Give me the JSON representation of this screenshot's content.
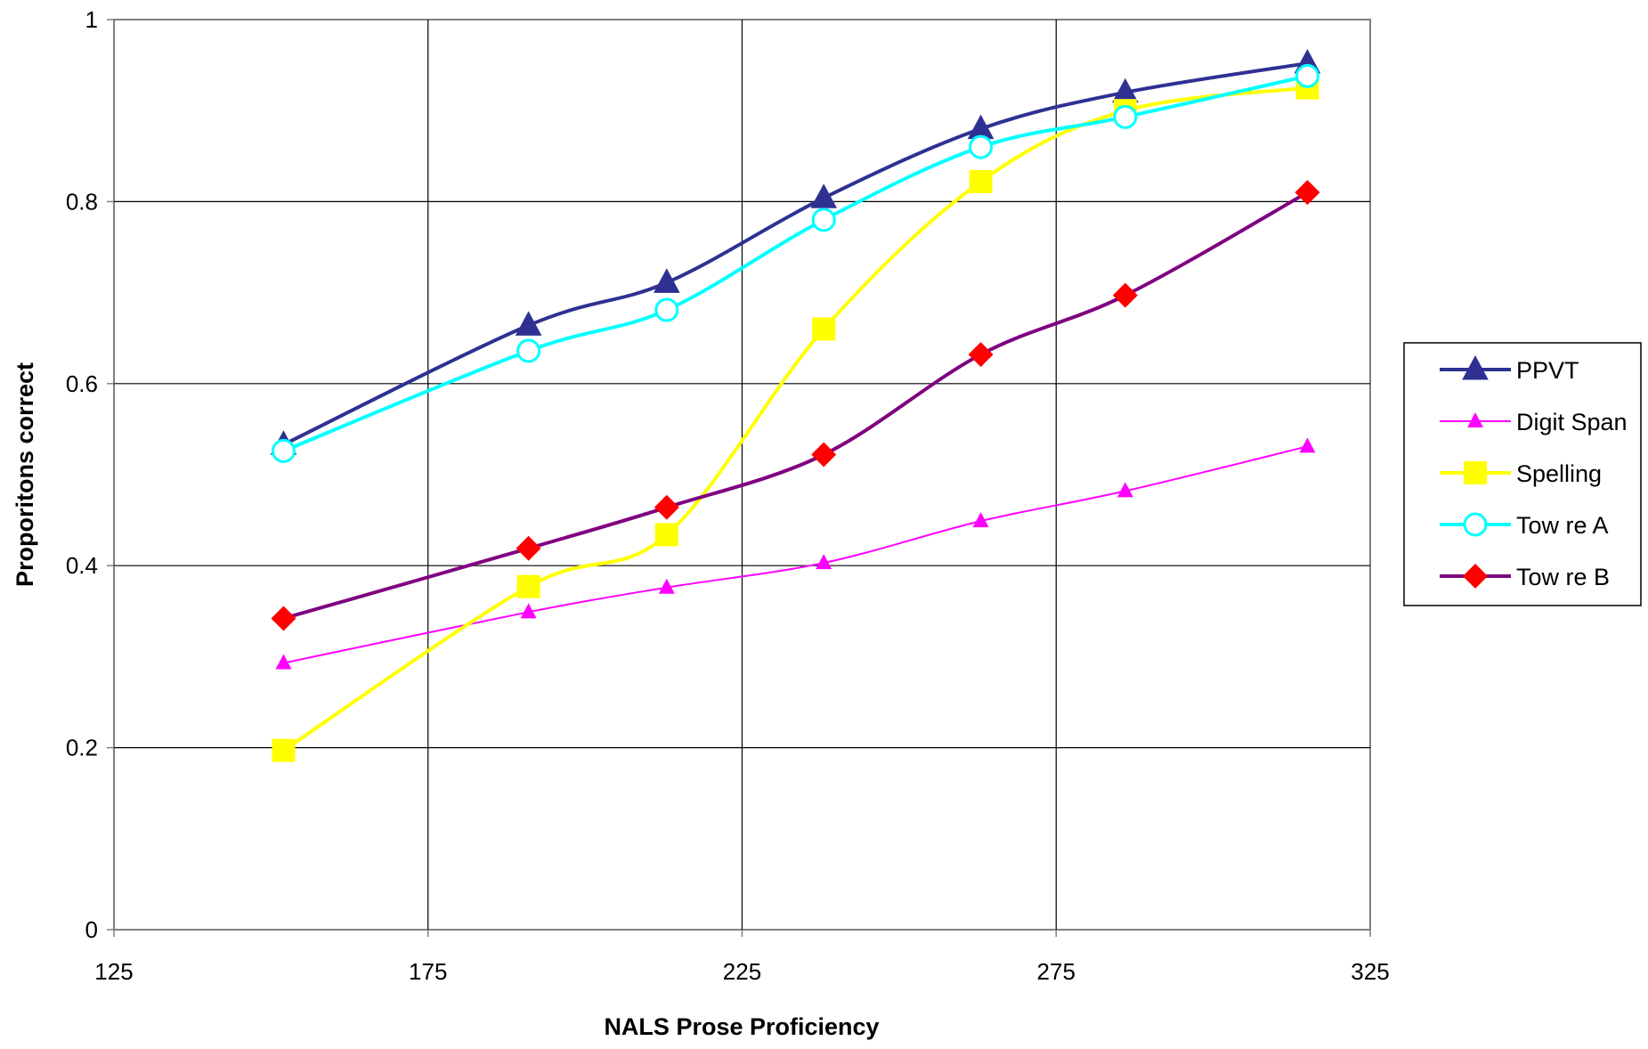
{
  "chart_data": {
    "type": "line",
    "title": "",
    "xlabel": "NALS Prose Proficiency",
    "ylabel": "Proporitons correct",
    "xlim": [
      125,
      325
    ],
    "ylim": [
      0,
      1
    ],
    "x_ticks": [
      "125",
      "175",
      "225",
      "275",
      "325"
    ],
    "y_ticks": [
      "0",
      "0.2",
      "0.4",
      "0.6",
      "0.8",
      "1"
    ],
    "grid": true,
    "legend_position": "right",
    "series": [
      {
        "name": "PPVT",
        "color": "#2E3192",
        "marker": "triangle",
        "x": [
          152,
          191,
          213,
          238,
          263,
          286,
          315
        ],
        "y": [
          0.533,
          0.664,
          0.711,
          0.804,
          0.88,
          0.92,
          0.952
        ]
      },
      {
        "name": "Digit Span",
        "color": "#FF00FF",
        "marker": "triangle-small",
        "x": [
          152,
          191,
          213,
          238,
          263,
          286,
          315
        ],
        "y": [
          0.293,
          0.349,
          0.376,
          0.403,
          0.449,
          0.482,
          0.531
        ]
      },
      {
        "name": "Spelling",
        "color": "#FFFF00",
        "marker": "square",
        "x": [
          152,
          191,
          213,
          238,
          263,
          286,
          315
        ],
        "y": [
          0.197,
          0.377,
          0.434,
          0.66,
          0.822,
          0.9,
          0.925
        ]
      },
      {
        "name": "Tow re A",
        "color": "#00FFFF",
        "marker": "circle",
        "x": [
          152,
          191,
          213,
          238,
          263,
          286,
          315
        ],
        "y": [
          0.526,
          0.636,
          0.681,
          0.78,
          0.86,
          0.893,
          0.938
        ]
      },
      {
        "name": "Tow re B",
        "color": "#800080",
        "marker": "diamond",
        "x": [
          152,
          191,
          213,
          238,
          263,
          286,
          315
        ],
        "y": [
          0.342,
          0.419,
          0.464,
          0.522,
          0.632,
          0.697,
          0.81
        ]
      }
    ]
  }
}
